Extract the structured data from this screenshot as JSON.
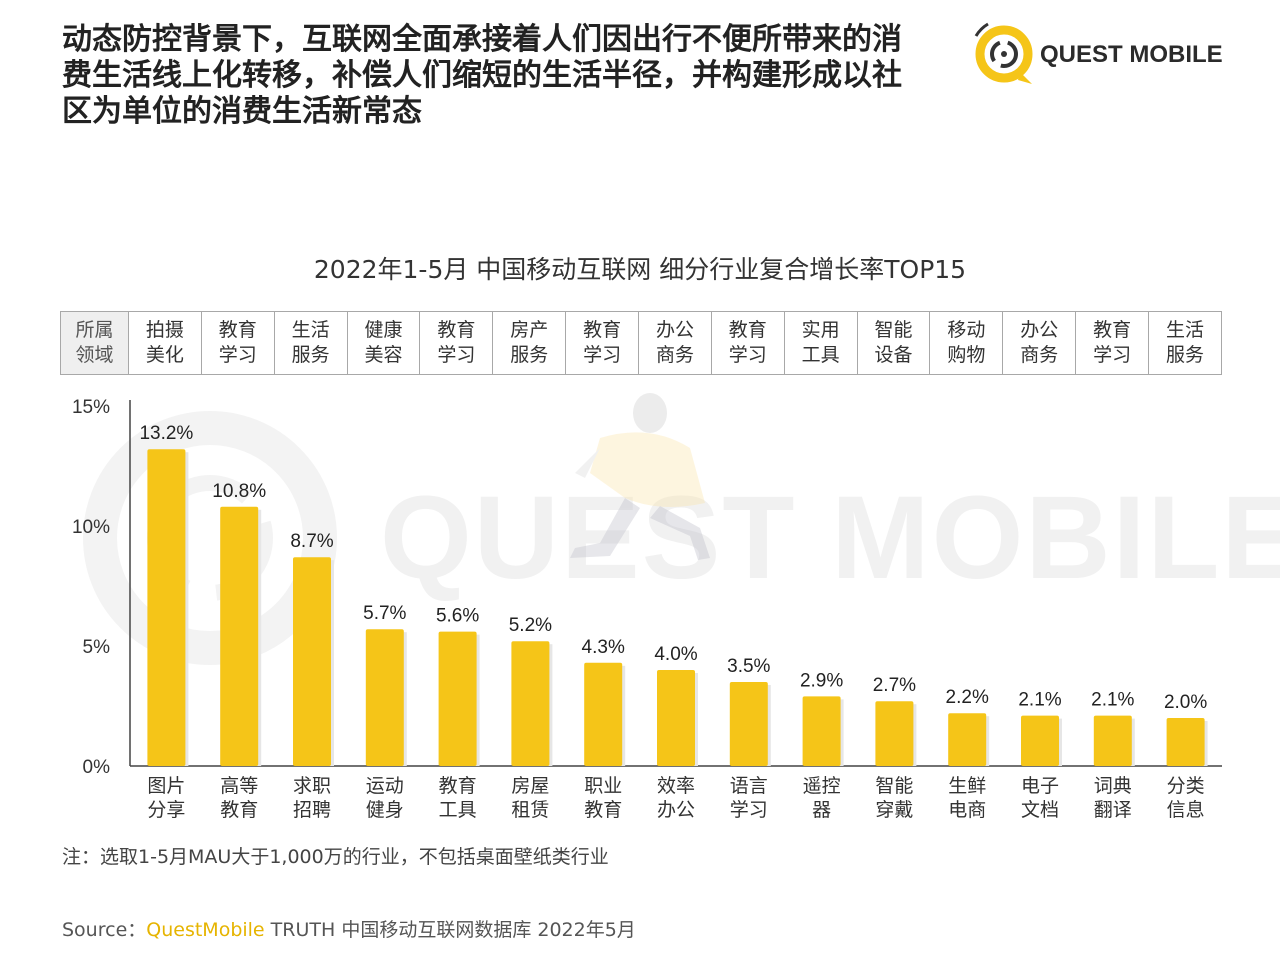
{
  "headline": [
    "动态防控背景下，互联网全面承接着人们因出行不便所带来的消",
    "费生活线上化转移，补偿人们缩短的生活半径，并构建形成以社",
    "区为单位的消费生活新常态"
  ],
  "logo": {
    "text": "QUEST MOBILE"
  },
  "watermark": "QUEST MOBILE",
  "domain_row": {
    "header": "所属\n领域",
    "cells": [
      "拍摄\n美化",
      "教育\n学习",
      "生活\n服务",
      "健康\n美容",
      "教育\n学习",
      "房产\n服务",
      "教育\n学习",
      "办公\n商务",
      "教育\n学习",
      "实用\n工具",
      "智能\n设备",
      "移动\n购物",
      "办公\n商务",
      "教育\n学习",
      "生活\n服务"
    ]
  },
  "chart_data": {
    "type": "bar",
    "title": "2022年1-5月 中国移动互联网 细分行业复合增长率TOP15",
    "categories": [
      "图片\n分享",
      "高等\n教育",
      "求职\n招聘",
      "运动\n健身",
      "教育\n工具",
      "房屋\n租赁",
      "职业\n教育",
      "效率\n办公",
      "语言\n学习",
      "遥控\n器",
      "智能\n穿戴",
      "生鲜\n电商",
      "电子\n文档",
      "词典\n翻译",
      "分类\n信息"
    ],
    "values": [
      13.2,
      10.8,
      8.7,
      5.7,
      5.6,
      5.2,
      4.3,
      4.0,
      3.5,
      2.9,
      2.7,
      2.2,
      2.1,
      2.1,
      2.0
    ],
    "value_labels": [
      "13.2%",
      "10.8%",
      "8.7%",
      "5.7%",
      "5.6%",
      "5.2%",
      "4.3%",
      "4.0%",
      "3.5%",
      "2.9%",
      "2.7%",
      "2.2%",
      "2.1%",
      "2.1%",
      "2.0%"
    ],
    "yticks": [
      0,
      5,
      10,
      15
    ],
    "ytick_labels": [
      "0%",
      "5%",
      "10%",
      "15%"
    ],
    "ylim": [
      0,
      15
    ],
    "xlabel": "",
    "ylabel": "",
    "bar_color": "#f5c518",
    "grid": false
  },
  "note": "注：选取1-5月MAU大于1,000万的行业，不包括桌面壁纸类行业",
  "source": {
    "prefix": "Source：",
    "brand": "QuestMobile",
    "rest": " TRUTH 中国移动互联网数据库 2022年5月"
  }
}
